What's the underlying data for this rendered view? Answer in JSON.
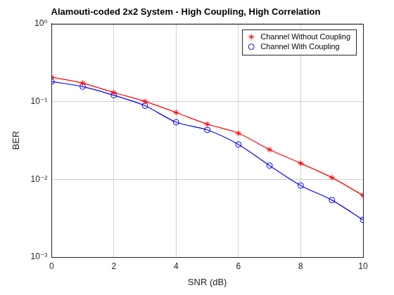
{
  "chart_data": {
    "type": "line",
    "title": "Alamouti-coded 2x2 System - High Coupling, High Correlation",
    "x_label": "SNR (dB)",
    "y_label": "BER",
    "x": [
      0,
      1,
      2,
      3,
      4,
      5,
      6,
      7,
      8,
      9,
      10
    ],
    "series": [
      {
        "name": "Channel Without Coupling",
        "color": "#ff0000",
        "marker": "asterisk",
        "line_style": "solid",
        "values": [
          0.205,
          0.172,
          0.13,
          0.1,
          0.072,
          0.051,
          0.039,
          0.024,
          0.016,
          0.0105,
          0.0062
        ]
      },
      {
        "name": "Channel With Coupling",
        "color": "#0000ff",
        "marker": "circle",
        "line_style": "solid",
        "values": [
          0.18,
          0.155,
          0.12,
          0.088,
          0.054,
          0.043,
          0.028,
          0.015,
          0.0083,
          0.0054,
          0.003
        ]
      }
    ],
    "xlim": [
      0,
      10
    ],
    "xticks": [
      0,
      2,
      4,
      6,
      8,
      10
    ],
    "ylim": [
      0.001,
      1
    ],
    "yticks": [
      {
        "value": 0.001,
        "label": "10⁻³"
      },
      {
        "value": 0.01,
        "label": "10⁻²"
      },
      {
        "value": 0.1,
        "label": "10⁻¹"
      },
      {
        "value": 1,
        "label": "10⁰"
      }
    ],
    "log": "y",
    "grid": true,
    "legend": "northeast"
  }
}
